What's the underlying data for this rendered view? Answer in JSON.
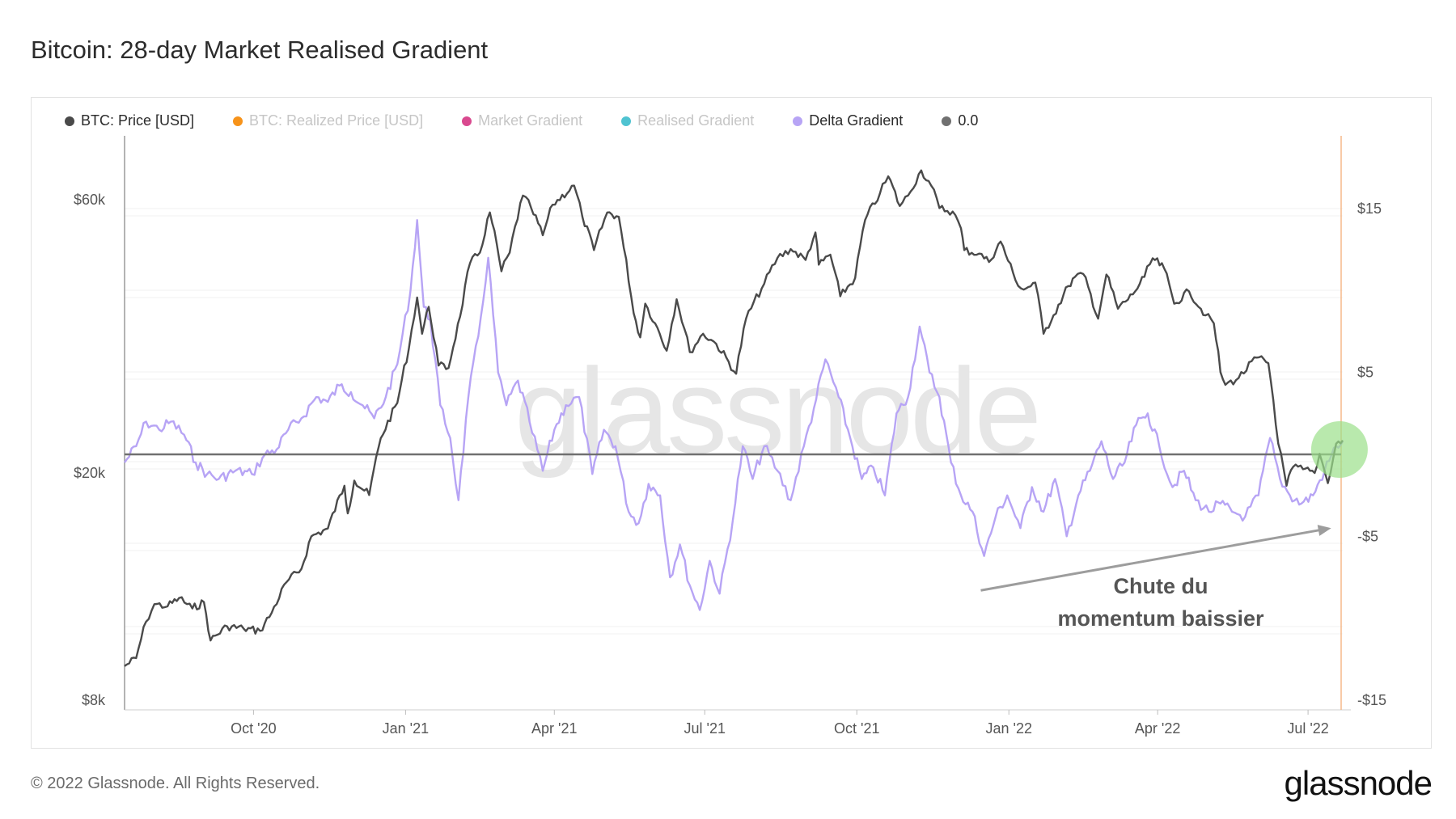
{
  "title": "Bitcoin: 28-day Market Realised Gradient",
  "footer": "© 2022 Glassnode. All Rights Reserved.",
  "brand": "glassnode",
  "watermark": "glassnode",
  "legend": [
    {
      "label": "BTC: Price [USD]",
      "color": "#4a4a4a",
      "active": true
    },
    {
      "label": "BTC: Realized Price [USD]",
      "color": "#f7931a",
      "active": false
    },
    {
      "label": "Market Gradient",
      "color": "#d9498f",
      "active": false
    },
    {
      "label": "Realised Gradient",
      "color": "#4fc3d1",
      "active": false
    },
    {
      "label": "Delta Gradient",
      "color": "#b7a4f5",
      "active": true
    },
    {
      "label": "0.0",
      "color": "#707070",
      "active": true
    }
  ],
  "annotation": {
    "line1": "Chute du",
    "line2": "momentum baissier"
  },
  "chart_data": {
    "type": "line",
    "x_ticks": [
      "Oct '20",
      "Jan '21",
      "Apr '21",
      "Jul '21",
      "Oct '21",
      "Jan '22",
      "Apr '22",
      "Jul '22"
    ],
    "y_left_ticks": [
      "$60k",
      "$20k",
      "$8k"
    ],
    "y_left_scale": "log",
    "y_left_range": [
      8000,
      72000
    ],
    "y_right_ticks": [
      "$15",
      "$5",
      "-$5",
      "-$15"
    ],
    "y_right_range": [
      -15,
      19.5
    ],
    "x_range": [
      "2020-07-15",
      "2022-07-22"
    ],
    "zero_line": 0.0,
    "highlight_marker": {
      "x": "2022-07-20",
      "color": "#9be08a"
    },
    "arrow": {
      "from_x": "2021-12-15",
      "from_y": -8.3,
      "to_x": "2022-07-15",
      "to_y": -4.5
    },
    "series": [
      {
        "name": "BTC: Price [USD]",
        "axis": "left",
        "color": "#4a4a4a",
        "points": [
          [
            "2020-07-15",
            9200
          ],
          [
            "2020-07-22",
            9500
          ],
          [
            "2020-07-28",
            11000
          ],
          [
            "2020-08-02",
            11800
          ],
          [
            "2020-08-10",
            11700
          ],
          [
            "2020-08-17",
            12100
          ],
          [
            "2020-08-25",
            11600
          ],
          [
            "2020-09-01",
            11900
          ],
          [
            "2020-09-05",
            10200
          ],
          [
            "2020-09-15",
            10800
          ],
          [
            "2020-09-25",
            10700
          ],
          [
            "2020-10-05",
            10600
          ],
          [
            "2020-10-12",
            11400
          ],
          [
            "2020-10-21",
            12900
          ],
          [
            "2020-10-30",
            13600
          ],
          [
            "2020-11-05",
            15500
          ],
          [
            "2020-11-15",
            16000
          ],
          [
            "2020-11-25",
            19000
          ],
          [
            "2020-11-27",
            17000
          ],
          [
            "2020-12-01",
            19400
          ],
          [
            "2020-12-10",
            18300
          ],
          [
            "2020-12-17",
            23000
          ],
          [
            "2020-12-27",
            26500
          ],
          [
            "2021-01-03",
            33000
          ],
          [
            "2021-01-08",
            40500
          ],
          [
            "2021-01-11",
            35000
          ],
          [
            "2021-01-15",
            39000
          ],
          [
            "2021-01-21",
            30800
          ],
          [
            "2021-01-27",
            30500
          ],
          [
            "2021-02-03",
            37500
          ],
          [
            "2021-02-09",
            46500
          ],
          [
            "2021-02-15",
            48500
          ],
          [
            "2021-02-21",
            57000
          ],
          [
            "2021-02-28",
            45000
          ],
          [
            "2021-03-05",
            48500
          ],
          [
            "2021-03-13",
            61000
          ],
          [
            "2021-03-18",
            58000
          ],
          [
            "2021-03-25",
            52000
          ],
          [
            "2021-03-31",
            58800
          ],
          [
            "2021-04-13",
            63500
          ],
          [
            "2021-04-18",
            56000
          ],
          [
            "2021-04-25",
            49000
          ],
          [
            "2021-05-03",
            57000
          ],
          [
            "2021-05-10",
            56000
          ],
          [
            "2021-05-13",
            49500
          ],
          [
            "2021-05-19",
            38000
          ],
          [
            "2021-05-23",
            34500
          ],
          [
            "2021-05-26",
            39500
          ],
          [
            "2021-06-01",
            36500
          ],
          [
            "2021-06-08",
            32700
          ],
          [
            "2021-06-14",
            40200
          ],
          [
            "2021-06-22",
            32500
          ],
          [
            "2021-06-30",
            35000
          ],
          [
            "2021-07-08",
            33600
          ],
          [
            "2021-07-20",
            29800
          ],
          [
            "2021-07-26",
            37200
          ],
          [
            "2021-08-06",
            42800
          ],
          [
            "2021-08-14",
            47500
          ],
          [
            "2021-08-22",
            49200
          ],
          [
            "2021-08-31",
            47100
          ],
          [
            "2021-09-06",
            52600
          ],
          [
            "2021-09-08",
            46200
          ],
          [
            "2021-09-15",
            48100
          ],
          [
            "2021-09-21",
            40700
          ],
          [
            "2021-09-30",
            43800
          ],
          [
            "2021-10-06",
            55300
          ],
          [
            "2021-10-15",
            61500
          ],
          [
            "2021-10-20",
            65900
          ],
          [
            "2021-10-27",
            58500
          ],
          [
            "2021-11-01",
            61000
          ],
          [
            "2021-11-09",
            67500
          ],
          [
            "2021-11-15",
            63500
          ],
          [
            "2021-11-20",
            58000
          ],
          [
            "2021-11-28",
            57200
          ],
          [
            "2021-12-03",
            53500
          ],
          [
            "2021-12-05",
            49000
          ],
          [
            "2021-12-14",
            48300
          ],
          [
            "2021-12-20",
            46700
          ],
          [
            "2021-12-27",
            50700
          ],
          [
            "2022-01-05",
            43400
          ],
          [
            "2022-01-10",
            41800
          ],
          [
            "2022-01-17",
            43000
          ],
          [
            "2022-01-22",
            35000
          ],
          [
            "2022-01-28",
            37700
          ],
          [
            "2022-02-06",
            42400
          ],
          [
            "2022-02-10",
            44000
          ],
          [
            "2022-02-15",
            44500
          ],
          [
            "2022-02-24",
            37200
          ],
          [
            "2022-03-01",
            44400
          ],
          [
            "2022-03-08",
            38700
          ],
          [
            "2022-03-17",
            41000
          ],
          [
            "2022-03-24",
            44000
          ],
          [
            "2022-03-29",
            47400
          ],
          [
            "2022-04-05",
            45500
          ],
          [
            "2022-04-11",
            39500
          ],
          [
            "2022-04-20",
            41500
          ],
          [
            "2022-04-30",
            37700
          ],
          [
            "2022-05-05",
            36500
          ],
          [
            "2022-05-09",
            30000
          ],
          [
            "2022-05-12",
            28500
          ],
          [
            "2022-05-20",
            29300
          ],
          [
            "2022-05-31",
            31800
          ],
          [
            "2022-06-07",
            31100
          ],
          [
            "2022-06-13",
            22500
          ],
          [
            "2022-06-18",
            19000
          ],
          [
            "2022-06-22",
            20500
          ],
          [
            "2022-06-28",
            20300
          ],
          [
            "2022-07-05",
            20000
          ],
          [
            "2022-07-08",
            21600
          ],
          [
            "2022-07-13",
            19200
          ],
          [
            "2022-07-18",
            22500
          ],
          [
            "2022-07-22",
            22800
          ]
        ]
      },
      {
        "name": "Delta Gradient",
        "axis": "right",
        "color": "#b7a4f5",
        "points": [
          [
            "2020-07-15",
            -0.5
          ],
          [
            "2020-07-22",
            0.5
          ],
          [
            "2020-07-28",
            2.0
          ],
          [
            "2020-08-05",
            1.5
          ],
          [
            "2020-08-12",
            2.0
          ],
          [
            "2020-08-20",
            1.2
          ],
          [
            "2020-08-27",
            -0.5
          ],
          [
            "2020-09-03",
            -1.2
          ],
          [
            "2020-09-10",
            -1.5
          ],
          [
            "2020-09-20",
            -1.0
          ],
          [
            "2020-09-30",
            -1.2
          ],
          [
            "2020-10-08",
            0.0
          ],
          [
            "2020-10-15",
            0.3
          ],
          [
            "2020-10-22",
            1.5
          ],
          [
            "2020-10-30",
            2.2
          ],
          [
            "2020-11-08",
            3.5
          ],
          [
            "2020-11-15",
            3.2
          ],
          [
            "2020-11-22",
            4.2
          ],
          [
            "2020-11-29",
            3.8
          ],
          [
            "2020-12-06",
            3.0
          ],
          [
            "2020-12-13",
            2.2
          ],
          [
            "2020-12-20",
            3.5
          ],
          [
            "2020-12-27",
            5.5
          ],
          [
            "2021-01-04",
            10.0
          ],
          [
            "2021-01-08",
            14.3
          ],
          [
            "2021-01-12",
            9.0
          ],
          [
            "2021-01-16",
            8.2
          ],
          [
            "2021-01-22",
            3.0
          ],
          [
            "2021-01-28",
            1.0
          ],
          [
            "2021-02-02",
            -2.8
          ],
          [
            "2021-02-08",
            3.5
          ],
          [
            "2021-02-14",
            7.2
          ],
          [
            "2021-02-20",
            12.0
          ],
          [
            "2021-02-26",
            5.0
          ],
          [
            "2021-03-03",
            3.0
          ],
          [
            "2021-03-10",
            4.5
          ],
          [
            "2021-03-17",
            2.0
          ],
          [
            "2021-03-25",
            -1.0
          ],
          [
            "2021-04-01",
            1.5
          ],
          [
            "2021-04-08",
            3.0
          ],
          [
            "2021-04-16",
            3.5
          ],
          [
            "2021-04-24",
            -1.2
          ],
          [
            "2021-05-01",
            1.5
          ],
          [
            "2021-05-08",
            0.5
          ],
          [
            "2021-05-16",
            -3.5
          ],
          [
            "2021-05-22",
            -4.2
          ],
          [
            "2021-05-28",
            -1.8
          ],
          [
            "2021-06-04",
            -2.5
          ],
          [
            "2021-06-10",
            -7.5
          ],
          [
            "2021-06-16",
            -5.5
          ],
          [
            "2021-06-22",
            -8.0
          ],
          [
            "2021-06-28",
            -9.5
          ],
          [
            "2021-07-04",
            -6.5
          ],
          [
            "2021-07-10",
            -8.5
          ],
          [
            "2021-07-18",
            -4.0
          ],
          [
            "2021-07-24",
            0.5
          ],
          [
            "2021-07-30",
            -1.5
          ],
          [
            "2021-08-06",
            0.5
          ],
          [
            "2021-08-14",
            -1.0
          ],
          [
            "2021-08-22",
            -2.8
          ],
          [
            "2021-08-30",
            0.5
          ],
          [
            "2021-09-05",
            2.8
          ],
          [
            "2021-09-12",
            5.8
          ],
          [
            "2021-09-20",
            3.5
          ],
          [
            "2021-09-27",
            1.0
          ],
          [
            "2021-10-04",
            -1.5
          ],
          [
            "2021-10-11",
            -0.8
          ],
          [
            "2021-10-18",
            -2.5
          ],
          [
            "2021-10-25",
            2.5
          ],
          [
            "2021-11-01",
            3.5
          ],
          [
            "2021-11-08",
            7.8
          ],
          [
            "2021-11-14",
            5.0
          ],
          [
            "2021-11-20",
            3.5
          ],
          [
            "2021-11-27",
            -0.5
          ],
          [
            "2021-12-03",
            -2.5
          ],
          [
            "2021-12-10",
            -3.5
          ],
          [
            "2021-12-17",
            -6.2
          ],
          [
            "2021-12-24",
            -3.8
          ],
          [
            "2021-12-31",
            -2.5
          ],
          [
            "2022-01-08",
            -4.5
          ],
          [
            "2022-01-15",
            -2.0
          ],
          [
            "2022-01-22",
            -3.5
          ],
          [
            "2022-01-29",
            -1.5
          ],
          [
            "2022-02-05",
            -5.0
          ],
          [
            "2022-02-12",
            -2.5
          ],
          [
            "2022-02-19",
            -1.0
          ],
          [
            "2022-02-26",
            0.8
          ],
          [
            "2022-03-05",
            -1.5
          ],
          [
            "2022-03-12",
            -0.5
          ],
          [
            "2022-03-19",
            1.8
          ],
          [
            "2022-03-26",
            2.5
          ],
          [
            "2022-04-02",
            0.5
          ],
          [
            "2022-04-10",
            -2.0
          ],
          [
            "2022-04-17",
            -1.0
          ],
          [
            "2022-04-24",
            -2.8
          ],
          [
            "2022-05-02",
            -3.5
          ],
          [
            "2022-05-09",
            -3.0
          ],
          [
            "2022-05-16",
            -3.5
          ],
          [
            "2022-05-24",
            -3.8
          ],
          [
            "2022-06-01",
            -2.5
          ],
          [
            "2022-06-08",
            1.0
          ],
          [
            "2022-06-14",
            -1.5
          ],
          [
            "2022-06-20",
            -2.5
          ],
          [
            "2022-06-27",
            -3.0
          ],
          [
            "2022-07-04",
            -2.5
          ],
          [
            "2022-07-11",
            -1.0
          ],
          [
            "2022-07-18",
            0.5
          ],
          [
            "2022-07-22",
            0.8
          ]
        ]
      }
    ]
  }
}
